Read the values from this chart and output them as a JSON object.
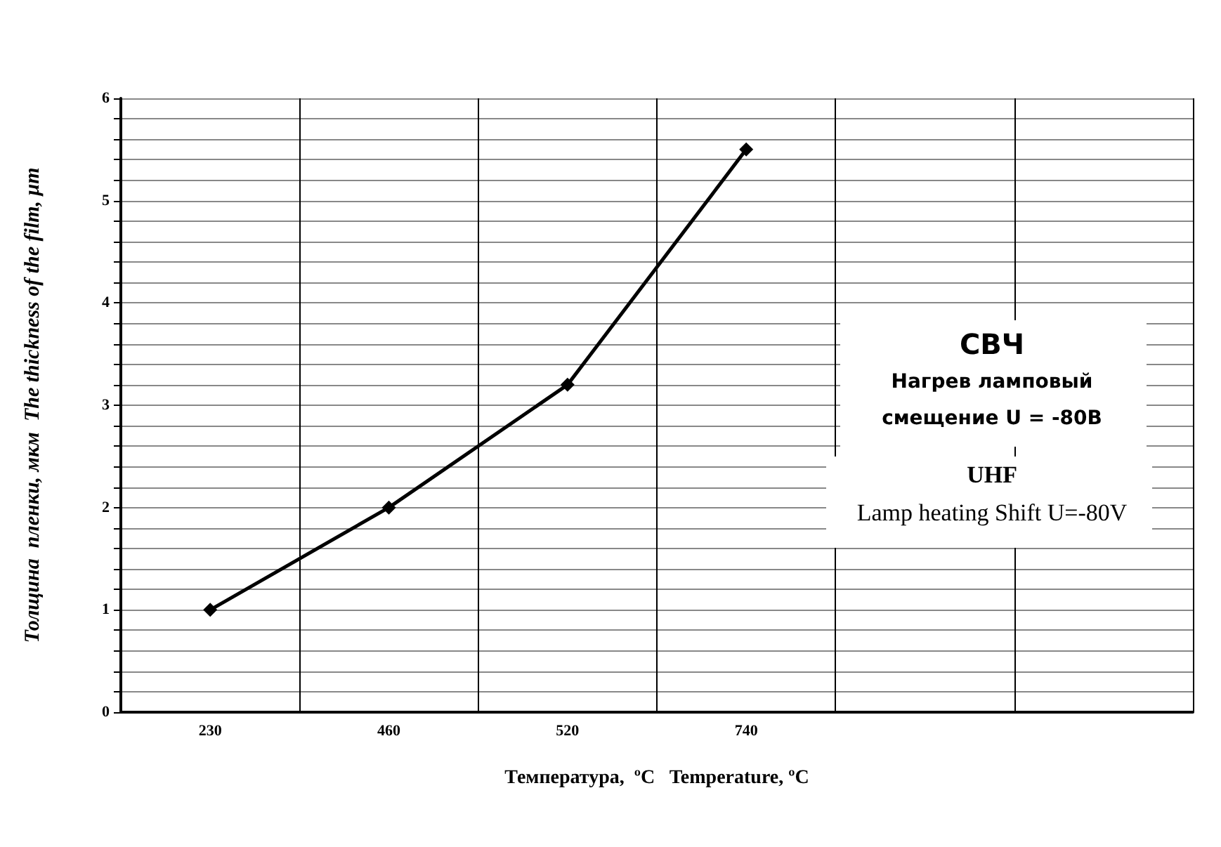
{
  "chart_data": {
    "type": "line",
    "xlabel": "Температура,  ºC   Temperature, ºC",
    "ylabel": "Толщина  пленки, мкм  The thickness of the film, μm",
    "categories": [
      "230",
      "460",
      "520",
      "740",
      null,
      null
    ],
    "series": [
      {
        "color": "#000000",
        "values": [
          1,
          2,
          3.2,
          5.5,
          null,
          null
        ]
      }
    ],
    "ylim": [
      0,
      6
    ],
    "yticks": [
      0,
      {
        "value": 0.2,
        "label": null
      },
      {
        "value": 0.4,
        "label": null
      },
      {
        "value": 0.6,
        "label": null
      },
      {
        "value": 0.8,
        "label": null
      },
      1,
      {
        "value": 1.2,
        "label": null
      },
      {
        "value": 1.4,
        "label": null
      },
      {
        "value": 1.6,
        "label": null
      },
      {
        "value": 1.8,
        "label": null
      },
      2,
      {
        "value": 2.2,
        "label": null
      },
      {
        "value": 2.4,
        "label": null
      },
      {
        "value": 2.6,
        "label": null
      },
      {
        "value": 2.8,
        "label": null
      },
      3,
      {
        "value": 3.2,
        "label": null
      },
      {
        "value": 3.4,
        "label": null
      },
      {
        "value": 3.6,
        "label": null
      },
      {
        "value": 3.8,
        "label": null
      },
      4,
      {
        "value": 4.2,
        "label": null
      },
      {
        "value": 4.4,
        "label": null
      },
      {
        "value": 4.6,
        "label": null
      },
      {
        "value": 4.8,
        "label": null
      },
      5,
      {
        "value": 5.2,
        "label": null
      },
      {
        "value": 5.4,
        "label": null
      },
      {
        "value": 5.6,
        "label": null
      },
      {
        "value": 5.8,
        "label": null
      },
      6
    ],
    "annotations": [
      "СВЧ",
      "Нагрев ламповый",
      "смещение U = -80В",
      "UHF",
      "Lamp heating Shift U=-80V"
    ],
    "grid": true,
    "marker": "diamond",
    "line_style": "solid"
  }
}
